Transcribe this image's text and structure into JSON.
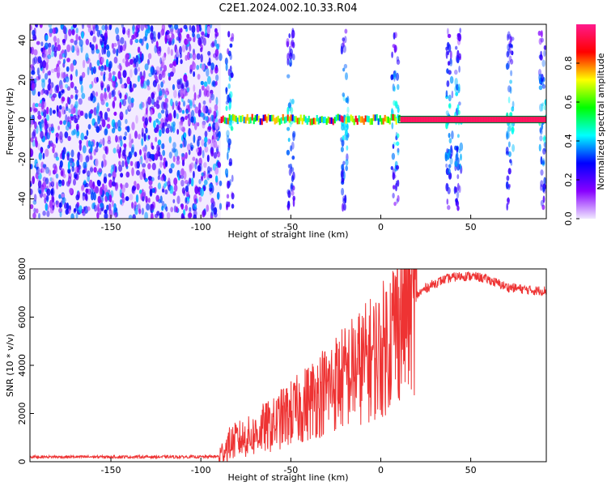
{
  "figure": {
    "title": "C2E1.2024.002.10.33.R04"
  },
  "chart_data": [
    {
      "type": "heatmap",
      "xlabel": "Height of straight line (km)",
      "ylabel": "Frequency (Hz)",
      "xlim": [
        -195,
        92
      ],
      "ylim": [
        -50,
        48
      ],
      "xticks": [
        -150,
        -100,
        -50,
        0,
        50
      ],
      "yticks": [
        -40,
        -20,
        0,
        20,
        40
      ],
      "noise_region_x": [
        -195,
        -89
      ],
      "carrier_frequency": 0,
      "carrier_start_x": -89,
      "broadband_bursts_x": [
        -84,
        -50,
        -20,
        8,
        38,
        43,
        72,
        90
      ],
      "colorbar": {
        "label": "Normalized spectral amplitude",
        "range": [
          0.0,
          1.0
        ],
        "ticks": [
          0.0,
          0.2,
          0.4,
          0.6,
          0.8
        ],
        "colors": [
          "#f0e8ff",
          "#8800ff",
          "#0000ff",
          "#00ffff",
          "#00ff00",
          "#ffff00",
          "#ff0000",
          "#ff1a8c"
        ]
      }
    },
    {
      "type": "line",
      "xlabel": "Height of straight line (km)",
      "ylabel": "SNR (10 * v/v)",
      "xlim": [
        -195,
        92
      ],
      "ylim": [
        0,
        8000
      ],
      "xticks": [
        -150,
        -100,
        -50,
        0,
        50
      ],
      "yticks": [
        0,
        2000,
        4000,
        6000,
        8000
      ],
      "color": "#ee3333",
      "x": [
        -195,
        -150,
        -100,
        -90,
        -88,
        -85,
        -80,
        -75,
        -70,
        -65,
        -60,
        -55,
        -50,
        -45,
        -40,
        -35,
        -30,
        -25,
        -20,
        -15,
        -10,
        -5,
        0,
        5,
        10,
        15,
        20,
        25,
        30,
        35,
        40,
        45,
        50,
        55,
        60,
        65,
        70,
        75,
        80,
        85,
        92
      ],
      "y": [
        200,
        200,
        200,
        220,
        400,
        700,
        900,
        1000,
        1100,
        1400,
        1500,
        1800,
        2000,
        2200,
        2500,
        2800,
        3000,
        3300,
        3500,
        3800,
        4000,
        4300,
        4500,
        5200,
        6000,
        6500,
        6900,
        7200,
        7400,
        7550,
        7650,
        7700,
        7700,
        7650,
        7550,
        7400,
        7250,
        7200,
        7150,
        7100,
        7100
      ]
    }
  ]
}
